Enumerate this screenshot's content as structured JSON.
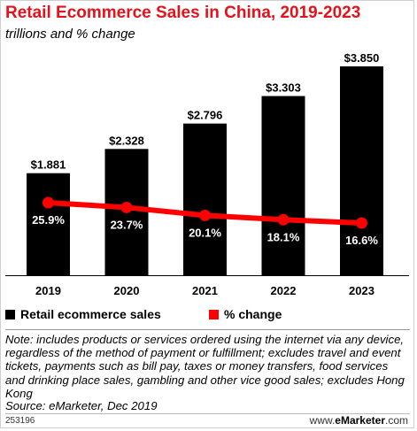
{
  "title": "Retail Ecommerce Sales in China, 2019-2023",
  "subtitle": "trillions and % change",
  "chart_data": {
    "type": "bar",
    "categories": [
      "2019",
      "2020",
      "2021",
      "2022",
      "2023"
    ],
    "series": [
      {
        "name": "Retail ecommerce sales",
        "type": "bar",
        "values": [
          1.881,
          2.328,
          2.796,
          3.303,
          3.85
        ],
        "labels": [
          "$1.881",
          "$2.328",
          "$2.796",
          "$3.303",
          "$3.850"
        ],
        "color": "#000000"
      },
      {
        "name": "% change",
        "type": "line",
        "values": [
          25.9,
          23.7,
          20.1,
          18.1,
          16.6
        ],
        "labels": [
          "25.9%",
          "23.7%",
          "20.1%",
          "18.1%",
          "16.6%"
        ],
        "color": "#ff0000"
      }
    ],
    "ylim": [
      0,
      3.85
    ],
    "legend_position": "bottom-left",
    "grid": false
  },
  "legend": [
    {
      "label": "Retail ecommerce sales",
      "color": "#000000"
    },
    {
      "label": "% change",
      "color": "#ff0000"
    }
  ],
  "note": "Note: includes products or services ordered using the internet via any device, regardless of the method of payment or fulfillment; excludes travel and event tickets, payments such as bill pay, taxes or money transfers, food services and drinking place sales, gambling and other vice good sales; excludes Hong Kong",
  "source": "Source: eMarketer, Dec 2019",
  "chart_id": "253196",
  "brand": {
    "prefix": "www.",
    "name": "eMarketer",
    "suffix": ".com"
  }
}
